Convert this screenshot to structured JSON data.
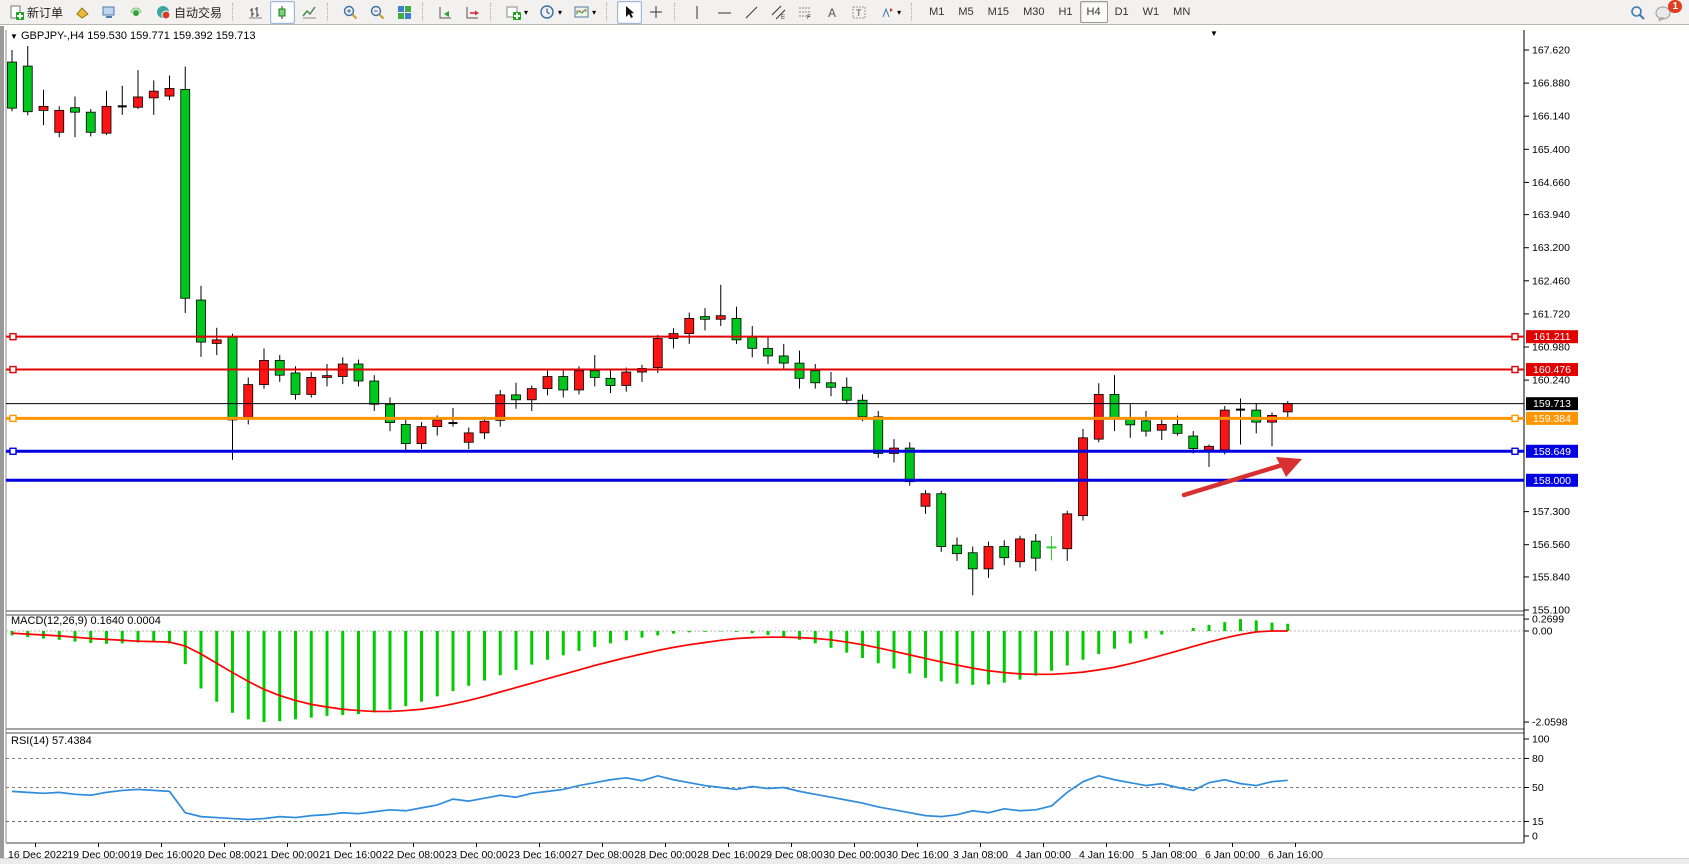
{
  "toolbar": {
    "new_order": "新订单",
    "auto_trading": "自动交易",
    "timeframes": [
      "M1",
      "M5",
      "M15",
      "M30",
      "H1",
      "H4",
      "D1",
      "W1",
      "MN"
    ],
    "active_timeframe": "H4",
    "notification_count": "1"
  },
  "chart": {
    "title_symbol": "GBPJPY-,H4",
    "title_ohlc": "159.530 159.771 159.392 159.713",
    "indicator_macd": {
      "name": "MACD(12,26,9)",
      "main": "0.1640",
      "signal": "0.0004",
      "scale_max": "0.2699",
      "scale_zero": "0.00",
      "scale_min": "-2.0598"
    },
    "indicator_rsi": {
      "name": "RSI(14)",
      "value": "57.4384"
    }
  },
  "chart_data": [
    {
      "type": "candlestick",
      "symbol": "GBPJPY-",
      "timeframe": "H4",
      "ylim": [
        155.1,
        167.8
      ],
      "yticks": [
        167.62,
        166.88,
        166.14,
        165.4,
        164.66,
        163.94,
        163.2,
        162.46,
        161.72,
        160.98,
        160.24,
        157.3,
        156.56,
        155.84,
        155.1
      ],
      "time_labels": [
        "16 Dec 2022",
        "19 Dec 00:00",
        "19 Dec 16:00",
        "20 Dec 08:00",
        "21 Dec 00:00",
        "21 Dec 16:00",
        "22 Dec 08:00",
        "23 Dec 00:00",
        "23 Dec 16:00",
        "27 Dec 08:00",
        "28 Dec 00:00",
        "28 Dec 16:00",
        "29 Dec 08:00",
        "30 Dec 00:00",
        "30 Dec 16:00",
        "3 Jan 08:00",
        "4 Jan 00:00",
        "4 Jan 16:00",
        "5 Jan 08:00",
        "6 Jan 00:00",
        "6 Jan 16:00"
      ],
      "colors": {
        "up": "#fa1414",
        "down": "#00c71c",
        "wick": "#000000",
        "background": "#ffffff"
      },
      "candles": [
        [
          167.35,
          167.62,
          166.25,
          166.32
        ],
        [
          167.26,
          167.71,
          166.16,
          166.24
        ],
        [
          166.27,
          166.73,
          165.94,
          166.36
        ],
        [
          165.78,
          166.36,
          165.67,
          166.27
        ],
        [
          166.33,
          166.58,
          165.67,
          166.23
        ],
        [
          166.23,
          166.3,
          165.69,
          165.78
        ],
        [
          165.76,
          166.71,
          165.72,
          166.36
        ],
        [
          166.36,
          166.82,
          166.17,
          166.36
        ],
        [
          166.34,
          167.17,
          166.3,
          166.57
        ],
        [
          166.55,
          166.94,
          166.17,
          166.7
        ],
        [
          166.59,
          167.05,
          166.5,
          166.76
        ],
        [
          166.74,
          167.25,
          161.74,
          162.07
        ],
        [
          162.03,
          162.35,
          160.76,
          161.09
        ],
        [
          161.06,
          161.41,
          160.8,
          161.14
        ],
        [
          161.2,
          161.28,
          158.46,
          159.35
        ],
        [
          159.41,
          160.3,
          159.25,
          160.14
        ],
        [
          160.14,
          160.95,
          160.05,
          160.68
        ],
        [
          160.68,
          160.8,
          160.2,
          160.35
        ],
        [
          160.4,
          160.55,
          159.8,
          159.92
        ],
        [
          159.92,
          160.42,
          159.85,
          160.3
        ],
        [
          160.3,
          160.6,
          160.1,
          160.34
        ],
        [
          160.32,
          160.75,
          160.15,
          160.6
        ],
        [
          160.6,
          160.7,
          160.1,
          160.22
        ],
        [
          160.22,
          160.35,
          159.55,
          159.7
        ],
        [
          159.7,
          159.85,
          159.1,
          159.29
        ],
        [
          159.25,
          159.4,
          158.62,
          158.82
        ],
        [
          158.82,
          159.3,
          158.7,
          159.2
        ],
        [
          159.2,
          159.45,
          159.0,
          159.35
        ],
        [
          159.3,
          159.62,
          159.2,
          159.28
        ],
        [
          158.85,
          159.18,
          158.7,
          159.06
        ],
        [
          159.06,
          159.42,
          158.92,
          159.32
        ],
        [
          159.34,
          160.02,
          159.2,
          159.91
        ],
        [
          159.91,
          160.18,
          159.6,
          159.8
        ],
        [
          159.8,
          160.12,
          159.55,
          160.05
        ],
        [
          160.05,
          160.45,
          159.9,
          160.32
        ],
        [
          160.32,
          160.5,
          159.85,
          160.02
        ],
        [
          160.02,
          160.55,
          159.92,
          160.45
        ],
        [
          160.45,
          160.8,
          160.1,
          160.3
        ],
        [
          160.28,
          160.48,
          159.95,
          160.12
        ],
        [
          160.12,
          160.52,
          159.98,
          160.42
        ],
        [
          160.42,
          160.58,
          160.2,
          160.5
        ],
        [
          160.52,
          161.25,
          160.4,
          161.17
        ],
        [
          161.17,
          161.4,
          160.95,
          161.28
        ],
        [
          161.28,
          161.75,
          161.05,
          161.62
        ],
        [
          161.66,
          161.85,
          161.35,
          161.6
        ],
        [
          161.6,
          162.37,
          161.45,
          161.68
        ],
        [
          161.62,
          161.88,
          161.05,
          161.14
        ],
        [
          161.2,
          161.45,
          160.75,
          160.95
        ],
        [
          160.95,
          161.2,
          160.6,
          160.78
        ],
        [
          160.78,
          161.05,
          160.5,
          160.62
        ],
        [
          160.62,
          160.9,
          160.05,
          160.28
        ],
        [
          160.45,
          160.6,
          160.05,
          160.18
        ],
        [
          160.18,
          160.42,
          159.88,
          160.08
        ],
        [
          160.08,
          160.3,
          159.7,
          159.79
        ],
        [
          159.79,
          159.92,
          159.32,
          159.42
        ],
        [
          159.42,
          159.55,
          158.5,
          158.6
        ],
        [
          158.6,
          158.92,
          158.4,
          158.72
        ],
        [
          158.72,
          158.85,
          157.88,
          157.97
        ],
        [
          157.42,
          157.78,
          157.25,
          157.7
        ],
        [
          157.7,
          157.76,
          156.4,
          156.52
        ],
        [
          156.55,
          156.72,
          156.2,
          156.36
        ],
        [
          156.38,
          156.52,
          155.43,
          156.02
        ],
        [
          156.02,
          156.63,
          155.82,
          156.52
        ],
        [
          156.52,
          156.66,
          156.1,
          156.27
        ],
        [
          156.18,
          156.76,
          156.05,
          156.69
        ],
        [
          156.64,
          156.8,
          155.97,
          156.26
        ],
        [
          156.5,
          156.66,
          156.3,
          156.5,
          "cross"
        ],
        [
          156.47,
          157.32,
          156.2,
          157.25
        ],
        [
          157.21,
          159.15,
          157.1,
          158.95
        ],
        [
          158.92,
          160.17,
          158.85,
          159.92
        ],
        [
          159.92,
          160.35,
          159.1,
          159.37
        ],
        [
          159.4,
          159.7,
          158.95,
          159.24
        ],
        [
          159.33,
          159.55,
          158.98,
          159.1
        ],
        [
          159.12,
          159.4,
          158.9,
          159.25
        ],
        [
          159.25,
          159.45,
          159.0,
          159.05
        ],
        [
          158.99,
          159.1,
          158.6,
          158.71
        ],
        [
          158.68,
          158.8,
          158.3,
          158.76
        ],
        [
          158.68,
          159.66,
          158.58,
          159.57
        ],
        [
          159.58,
          159.83,
          158.8,
          159.58
        ],
        [
          159.57,
          159.72,
          159.05,
          159.3
        ],
        [
          159.3,
          159.52,
          158.76,
          159.45
        ],
        [
          159.53,
          159.771,
          159.392,
          159.713
        ]
      ],
      "hlines": [
        {
          "price": 161.211,
          "color": "#e00000",
          "width": 2,
          "badge": "161.211",
          "left_handle": true,
          "right_handle": true
        },
        {
          "price": 160.476,
          "color": "#e00000",
          "width": 2,
          "badge": "160.476",
          "left_handle": true,
          "right_handle": true
        },
        {
          "price": 159.713,
          "color": "#000000",
          "width": 1,
          "badge": "159.713",
          "left_handle": false,
          "right_handle": false
        },
        {
          "price": 159.384,
          "color": "#ff9500",
          "width": 3,
          "badge": "159.384",
          "left_handle": true,
          "right_handle": true
        },
        {
          "price": 158.649,
          "color": "#0000e0",
          "width": 3,
          "badge": "158.649",
          "left_handle": true,
          "right_handle": true
        },
        {
          "price": 158.0,
          "color": "#0000e0",
          "width": 3,
          "badge": "158.000",
          "left_handle": false,
          "right_handle": false
        }
      ],
      "bid_price": 159.713,
      "arrow_annotation": {
        "color": "#d63030"
      }
    },
    {
      "type": "bar",
      "title": "MACD(12,26,9)",
      "ylim": [
        -2.0598,
        0.2699
      ],
      "levels": {
        "max": 0.2699,
        "zero": 0.0,
        "min": -2.0598
      },
      "colors": {
        "histogram": "#00cc00",
        "signal": "#ff0000"
      },
      "values": [
        -0.1,
        -0.14,
        -0.17,
        -0.2,
        -0.24,
        -0.27,
        -0.29,
        -0.28,
        -0.26,
        -0.25,
        -0.28,
        -0.75,
        -1.3,
        -1.6,
        -1.85,
        -2.0,
        -2.06,
        -2.04,
        -2.0,
        -1.96,
        -1.92,
        -1.9,
        -1.88,
        -1.84,
        -1.78,
        -1.7,
        -1.6,
        -1.48,
        -1.36,
        -1.24,
        -1.12,
        -1.0,
        -0.88,
        -0.76,
        -0.65,
        -0.55,
        -0.45,
        -0.36,
        -0.28,
        -0.21,
        -0.15,
        -0.1,
        -0.06,
        -0.03,
        -0.02,
        -0.01,
        -0.02,
        -0.05,
        -0.09,
        -0.14,
        -0.2,
        -0.28,
        -0.38,
        -0.49,
        -0.61,
        -0.73,
        -0.85,
        -0.96,
        -1.06,
        -1.14,
        -1.19,
        -1.22,
        -1.21,
        -1.17,
        -1.1,
        -1.01,
        -0.9,
        -0.78,
        -0.65,
        -0.52,
        -0.4,
        -0.28,
        -0.17,
        -0.08,
        0.0,
        0.07,
        0.14,
        0.2,
        0.2699,
        0.24,
        0.19,
        0.164
      ],
      "signal": [
        -0.05,
        -0.07,
        -0.09,
        -0.11,
        -0.14,
        -0.17,
        -0.19,
        -0.21,
        -0.23,
        -0.24,
        -0.25,
        -0.34,
        -0.52,
        -0.73,
        -0.94,
        -1.14,
        -1.32,
        -1.46,
        -1.57,
        -1.66,
        -1.72,
        -1.77,
        -1.8,
        -1.82,
        -1.82,
        -1.8,
        -1.77,
        -1.72,
        -1.65,
        -1.57,
        -1.48,
        -1.38,
        -1.28,
        -1.18,
        -1.08,
        -0.98,
        -0.88,
        -0.78,
        -0.69,
        -0.6,
        -0.52,
        -0.44,
        -0.37,
        -0.31,
        -0.26,
        -0.21,
        -0.17,
        -0.15,
        -0.14,
        -0.14,
        -0.15,
        -0.17,
        -0.2,
        -0.25,
        -0.31,
        -0.38,
        -0.46,
        -0.54,
        -0.62,
        -0.7,
        -0.77,
        -0.84,
        -0.9,
        -0.94,
        -0.97,
        -0.98,
        -0.98,
        -0.96,
        -0.93,
        -0.88,
        -0.82,
        -0.74,
        -0.65,
        -0.55,
        -0.45,
        -0.35,
        -0.25,
        -0.16,
        -0.08,
        -0.02,
        0.0,
        0.0004
      ]
    },
    {
      "type": "line",
      "title": "RSI(14)",
      "ylim": [
        0,
        100
      ],
      "yticks": [
        100,
        80,
        50,
        15,
        0
      ],
      "dashed_levels": [
        80,
        50,
        15
      ],
      "color": "#2f8cdc",
      "values": [
        46,
        45,
        44,
        45,
        43,
        42,
        45,
        47,
        48,
        47,
        46,
        24,
        20,
        19,
        18,
        17,
        18,
        20,
        19,
        21,
        22,
        24,
        23,
        25,
        27,
        26,
        29,
        32,
        38,
        36,
        39,
        42,
        40,
        44,
        46,
        48,
        52,
        55,
        58,
        60,
        57,
        62,
        58,
        55,
        52,
        50,
        48,
        51,
        49,
        50,
        46,
        43,
        40,
        37,
        34,
        30,
        27,
        24,
        21,
        20,
        22,
        26,
        24,
        28,
        26,
        27,
        31,
        45,
        56,
        62,
        58,
        55,
        52,
        54,
        50,
        47,
        55,
        58,
        54,
        52,
        56,
        57.4384
      ]
    }
  ]
}
